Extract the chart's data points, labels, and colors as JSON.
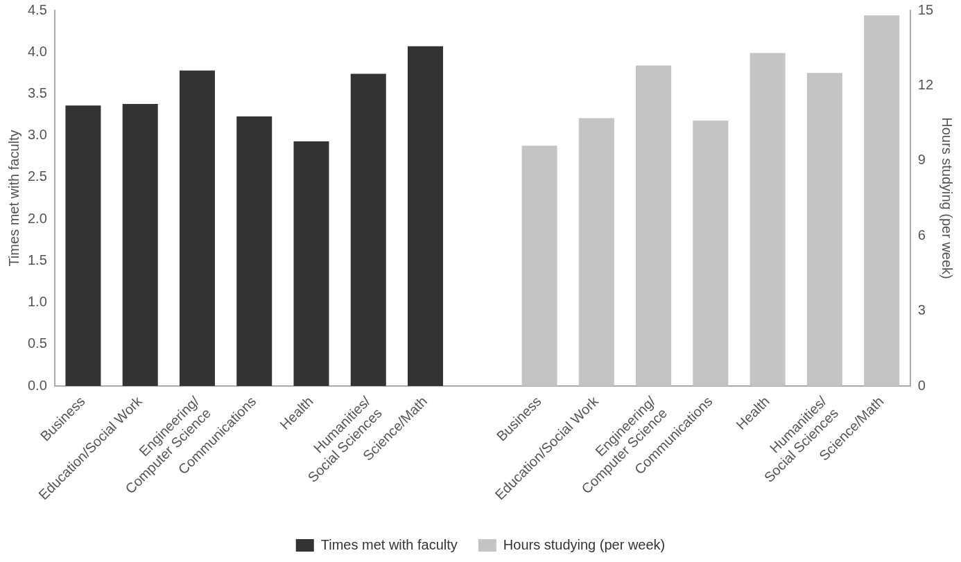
{
  "chart_data": {
    "type": "bar",
    "categories": [
      "Business",
      "Education/Social Work",
      "Engineering/\nComputer Science",
      "Communications",
      "Health",
      "Humanities/\nSocial Sciences",
      "Science/Math",
      null,
      "Business",
      "Education/Social Work",
      "Engineering/\nComputer Science",
      "Communications",
      "Health",
      "Humanities/\nSocial Sciences",
      "Science/Math"
    ],
    "series": [
      {
        "name": "Times met with faculty",
        "color": "#333333",
        "values": [
          3.36,
          3.38,
          3.78,
          3.23,
          2.93,
          3.74,
          4.07,
          null,
          null,
          null,
          null,
          null,
          null,
          null,
          null
        ]
      },
      {
        "name": "Hours studying (per week)",
        "color": "#c4c4c4",
        "axis": "y2",
        "values": [
          null,
          null,
          null,
          null,
          null,
          null,
          null,
          null,
          9.6,
          10.7,
          12.8,
          10.6,
          13.3,
          12.5,
          14.8
        ]
      }
    ],
    "ylabel": "Times met with faculty",
    "y2label": "Hours studying (per week)",
    "ylim": [
      0,
      4.5
    ],
    "yticks": [
      {
        "value": 0,
        "label": "0.0"
      },
      {
        "value": 0.5,
        "label": "0.5"
      },
      {
        "value": 1,
        "label": "1.0"
      },
      {
        "value": 1.5,
        "label": "1.5"
      },
      {
        "value": 2,
        "label": "2.0"
      },
      {
        "value": 2.5,
        "label": "2.5"
      },
      {
        "value": 3,
        "label": "3.0"
      },
      {
        "value": 3.5,
        "label": "3.5"
      },
      {
        "value": 4,
        "label": "4.0"
      },
      {
        "value": 4.5,
        "label": "4.5"
      }
    ],
    "y2lim": [
      0,
      15
    ],
    "y2ticks": [
      0,
      3,
      6,
      9,
      12,
      15
    ],
    "grid": false,
    "legend": "bottom"
  }
}
